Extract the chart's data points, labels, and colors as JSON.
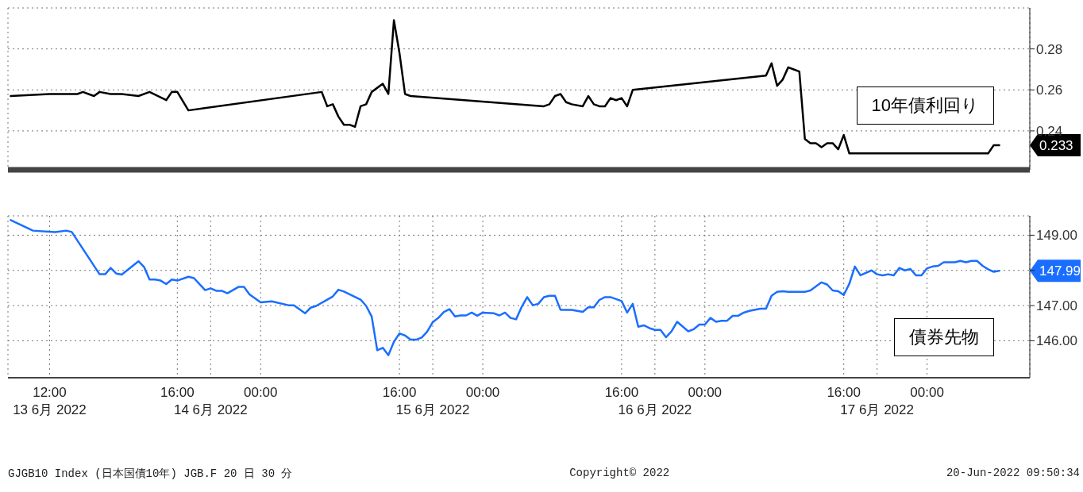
{
  "chart_data": [
    {
      "type": "line",
      "categories": [
        null,
        null,
        null,
        null,
        null,
        null,
        null,
        null,
        null,
        null,
        null,
        null,
        null,
        null,
        null,
        null,
        null,
        null,
        null,
        null,
        null,
        null,
        null,
        null,
        null,
        null,
        null,
        null,
        null,
        null,
        null,
        null,
        null,
        null,
        null,
        null,
        null,
        null,
        null,
        null,
        null,
        null,
        null,
        null,
        null,
        null,
        null,
        null,
        null,
        null,
        null,
        null,
        null,
        null,
        null,
        null,
        null,
        null,
        null,
        null,
        null,
        null,
        null,
        null,
        null,
        null,
        null,
        null,
        null,
        null,
        null,
        null,
        null,
        null,
        null,
        null,
        null,
        null,
        null,
        null,
        null,
        null,
        null,
        null,
        null,
        null,
        null,
        null,
        null,
        null,
        null,
        null,
        null,
        null,
        null,
        null,
        null,
        null,
        null,
        null,
        null,
        null,
        null,
        null,
        null,
        null,
        null,
        null,
        null,
        null,
        null,
        null,
        null,
        null,
        null,
        null,
        null,
        null,
        null,
        null,
        null,
        null,
        null,
        null,
        null,
        null,
        null,
        null,
        null,
        null,
        null,
        null,
        null,
        null,
        null,
        null,
        null,
        null,
        null,
        null,
        null,
        null,
        null,
        null,
        null,
        null,
        null,
        null,
        null,
        null,
        null,
        null,
        null,
        null,
        null,
        null,
        null,
        null,
        null,
        null,
        null,
        null,
        null,
        null,
        null,
        null,
        null,
        null,
        null,
        null,
        null,
        null,
        null,
        null,
        null,
        null,
        null,
        null,
        null,
        null,
        null,
        null,
        null,
        null
      ],
      "ylim": [
        0.221,
        0.3
      ],
      "yticks": [
        0.24,
        0.26,
        0.28
      ],
      "grid": true,
      "legend": "right",
      "tick_labels": "y",
      "series": [
        {
          "name": "10年債利回り",
          "color": "#000000",
          "values": [
            0.257,
            null,
            null,
            null,
            null,
            null,
            null,
            0.258,
            null,
            null,
            null,
            null,
            0.258,
            0.259,
            0.258,
            0.257,
            0.259,
            null,
            0.258,
            null,
            0.258,
            null,
            null,
            0.257,
            null,
            0.259,
            null,
            null,
            0.255,
            0.259,
            0.259,
            null,
            0.25,
            null,
            null,
            null,
            null,
            null,
            null,
            null,
            null,
            null,
            null,
            null,
            null,
            null,
            null,
            null,
            null,
            null,
            null,
            null,
            null,
            null,
            null,
            null,
            0.259,
            0.252,
            0.253,
            0.247,
            0.243,
            0.243,
            0.242,
            0.252,
            0.253,
            0.259,
            null,
            0.263,
            0.258,
            0.294,
            0.278,
            0.258,
            0.257,
            null,
            null,
            null,
            null,
            null,
            null,
            null,
            null,
            null,
            null,
            null,
            null,
            null,
            null,
            null,
            null,
            null,
            null,
            null,
            null,
            null,
            null,
            null,
            0.252,
            0.253,
            0.257,
            0.258,
            0.254,
            0.253,
            null,
            0.252,
            0.257,
            0.253,
            0.252,
            0.252,
            0.256,
            0.255,
            0.256,
            0.252,
            0.26,
            null,
            null,
            null,
            null,
            null,
            null,
            null,
            null,
            null,
            null,
            null,
            null,
            null,
            null,
            null,
            null,
            null,
            null,
            null,
            null,
            null,
            null,
            null,
            0.267,
            0.273,
            0.262,
            0.265,
            0.271,
            0.27,
            0.269,
            0.236,
            0.234,
            0.234,
            0.232,
            0.234,
            0.234,
            0.231,
            0.238,
            0.229,
            null,
            null,
            null,
            null,
            null,
            null,
            null,
            null,
            null,
            null,
            null,
            null,
            null,
            null,
            null,
            null,
            null,
            null,
            null,
            null,
            null,
            null,
            null,
            null,
            0.229,
            0.233,
            0.233,
            null,
            null,
            null,
            null,
            null
          ]
        }
      ],
      "annotations": [
        "0.233"
      ]
    },
    {
      "type": "line",
      "categories": [
        null,
        null,
        null,
        null,
        null,
        null,
        null,
        "12:00\n13 6月 2022",
        null,
        null,
        null,
        null,
        null,
        null,
        null,
        null,
        null,
        null,
        null,
        null,
        null,
        null,
        null,
        null,
        null,
        null,
        null,
        null,
        null,
        null,
        "16:00",
        null,
        null,
        null,
        null,
        null,
        "\n14 6月 2022",
        null,
        null,
        null,
        null,
        null,
        null,
        null,
        null,
        "00:00",
        null,
        null,
        null,
        null,
        null,
        null,
        null,
        null,
        null,
        null,
        null,
        null,
        null,
        null,
        null,
        null,
        null,
        null,
        null,
        null,
        null,
        null,
        null,
        null,
        "16:00",
        null,
        null,
        null,
        null,
        null,
        "\n15 6月 2022",
        null,
        null,
        null,
        null,
        null,
        null,
        null,
        null,
        "00:00",
        null,
        null,
        null,
        null,
        null,
        null,
        null,
        null,
        null,
        null,
        null,
        null,
        null,
        null,
        null,
        null,
        null,
        null,
        null,
        null,
        null,
        null,
        null,
        null,
        "16:00",
        null,
        null,
        null,
        null,
        null,
        "\n16 6月 2022",
        null,
        null,
        null,
        null,
        null,
        null,
        null,
        null,
        "00:00",
        null,
        null,
        null,
        null,
        null,
        null,
        null,
        null,
        null,
        null,
        null,
        null,
        null,
        null,
        null,
        null,
        null,
        null,
        null,
        null,
        null,
        null,
        null,
        null,
        "16:00",
        null,
        null,
        null,
        null,
        null,
        "\n17 6月 2022",
        null,
        null,
        null,
        null,
        null,
        null,
        null,
        null,
        "00:00",
        null,
        null,
        null,
        null,
        null,
        null,
        null,
        null,
        null,
        null,
        null,
        null,
        null,
        null,
        null,
        null,
        null,
        null
      ],
      "ylim": [
        144.95,
        149.55
      ],
      "yticks": [
        {
          "value": 146,
          "label": "146.00"
        },
        {
          "value": 147,
          "label": "147.00"
        },
        {
          "value": 148,
          "label": null
        },
        {
          "value": 149,
          "label": "149.00"
        }
      ],
      "grid": true,
      "legend": "right",
      "series": [
        {
          "name": "債券先物",
          "color": "#1a6eff",
          "values": [
            149.43,
            null,
            null,
            null,
            149.13,
            null,
            null,
            null,
            149.09,
            null,
            149.13,
            149.09,
            null,
            null,
            null,
            null,
            147.89,
            147.89,
            148.07,
            147.91,
            147.88,
            null,
            null,
            148.26,
            148.1,
            147.74,
            147.74,
            147.71,
            147.61,
            147.74,
            147.71,
            null,
            147.82,
            147.78,
            null,
            147.44,
            147.49,
            147.42,
            147.42,
            147.35,
            null,
            147.53,
            147.53,
            147.32,
            null,
            147.09,
            null,
            147.12,
            null,
            null,
            147.01,
            147.01,
            null,
            146.78,
            146.94,
            146.99,
            null,
            147.17,
            147.26,
            147.45,
            147.4,
            null,
            null,
            147.17,
            146.99,
            146.69,
            145.73,
            145.8,
            145.59,
            145.97,
            146.21,
            146.15,
            146.03,
            146.03,
            146.09,
            146.26,
            146.53,
            146.65,
            146.82,
            146.9,
            146.69,
            146.72,
            146.72,
            146.8,
            146.71,
            146.8,
            null,
            146.78,
            146.72,
            146.8,
            146.65,
            146.61,
            146.96,
            147.24,
            147.01,
            147.05,
            147.24,
            147.28,
            147.28,
            146.88,
            null,
            146.88,
            null,
            146.82,
            146.95,
            146.95,
            147.16,
            147.24,
            147.24,
            null,
            147.13,
            146.8,
            147.05,
            146.4,
            146.44,
            146.36,
            146.31,
            146.31,
            146.1,
            146.27,
            146.54,
            null,
            146.27,
            146.33,
            146.46,
            146.46,
            146.65,
            146.54,
            146.57,
            146.57,
            146.71,
            146.71,
            146.8,
            146.85,
            null,
            146.91,
            146.91,
            147.28,
            147.39,
            147.41,
            147.39,
            null,
            null,
            147.39,
            147.43,
            null,
            147.66,
            147.6,
            147.43,
            147.41,
            147.3,
            147.62,
            148.11,
            147.86,
            null,
            148,
            147.89,
            147.86,
            147.89,
            147.86,
            148.07,
            148,
            148.04,
            147.86,
            147.86,
            148.06,
            148.11,
            148.13,
            148.23,
            null,
            148.23,
            148.27,
            148.23,
            148.27,
            148.27,
            148.13,
            148.03,
            147.96,
            147.99,
            null,
            null,
            null,
            null,
            null
          ]
        }
      ],
      "annotations": [
        "147.99",
        "GJGB10 Index (日本国債10年) JGB.F 20 日 30 分",
        "Copyright© 2022",
        "20-Jun-2022 09:50:34"
      ]
    }
  ]
}
